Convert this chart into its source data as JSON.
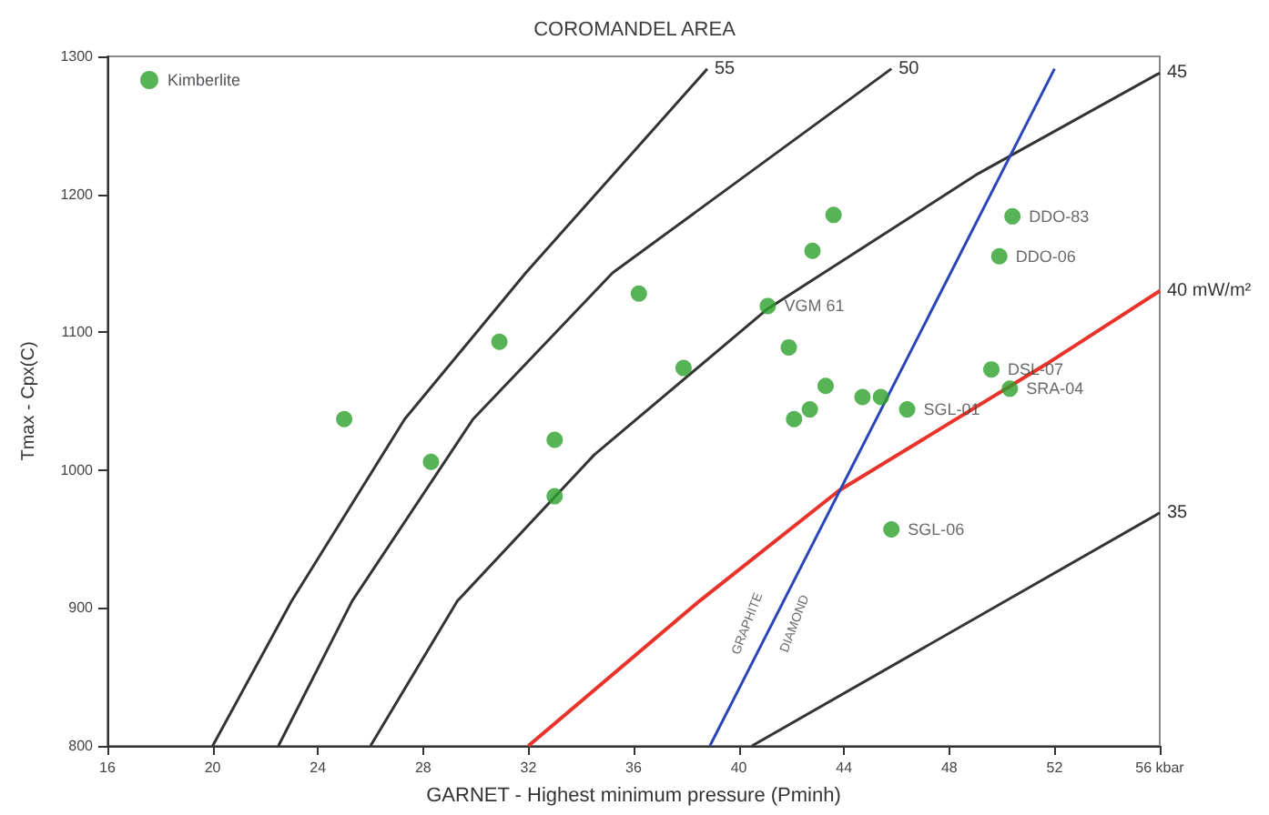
{
  "chart_data": {
    "type": "scatter",
    "title": "COROMANDEL AREA",
    "xlabel": "GARNET - Highest minimum pressure (Pminh)",
    "ylabel": "Tmax - Cpx(C)",
    "xlim": [
      16,
      56
    ],
    "xticks": [
      16,
      20,
      24,
      28,
      32,
      36,
      40,
      44,
      48,
      {
        "value": 52,
        "label": "52"
      },
      {
        "value": 56,
        "label": "56 kbar"
      }
    ],
    "ylim": [
      800,
      1300
    ],
    "yticks": [
      800,
      900,
      1000,
      1100,
      1200,
      1300
    ],
    "grid": false,
    "legend": "top left",
    "series": [
      {
        "name": "Kimberlite",
        "marker": "circle",
        "color": "#2ca02c",
        "x": [
          25.0,
          28.3,
          30.9,
          33.0,
          33.0,
          36.2,
          37.9,
          41.1,
          41.9,
          42.8,
          43.6,
          43.3,
          42.1,
          42.7,
          44.7,
          45.4,
          46.4,
          45.8,
          49.6,
          50.3,
          49.9,
          50.4
        ],
        "values": [
          1037,
          1006,
          1093,
          1022,
          981,
          1128,
          1074,
          1119,
          1089,
          1159,
          1185,
          1061,
          1037,
          1044,
          1053,
          1053,
          1044,
          957,
          1073,
          1059,
          1155,
          1184
        ]
      },
      {
        "name": "55",
        "type": "line",
        "color": "#333333",
        "x": [
          20.0,
          23.0,
          27.3,
          31.9,
          38.8
        ],
        "values": [
          800,
          905,
          1037,
          1143,
          1291
        ]
      },
      {
        "name": "50",
        "type": "line",
        "color": "#333333",
        "x": [
          22.5,
          25.3,
          29.9,
          35.2,
          45.8
        ],
        "values": [
          800,
          905,
          1037,
          1143,
          1291
        ]
      },
      {
        "name": "45",
        "type": "line",
        "color": "#333333",
        "x": [
          26.0,
          29.3,
          34.5,
          41.1,
          49.1,
          56.0
        ],
        "values": [
          800,
          905,
          1011,
          1117,
          1215,
          1288
        ]
      },
      {
        "name": "35",
        "type": "line",
        "color": "#333333",
        "x": [
          40.5,
          56.0
        ],
        "values": [
          800,
          969
        ]
      },
      {
        "name": "40 mW/m²",
        "type": "line",
        "color": "#e8322a",
        "x": [
          32.0,
          38.5,
          43.8,
          51.7,
          56.0
        ],
        "values": [
          800,
          905,
          985,
          1077,
          1130
        ]
      },
      {
        "type": "line",
        "color": "#2a45b8",
        "x": [
          38.9,
          52.0
        ],
        "values": [
          800,
          1291
        ]
      }
    ],
    "annotations": [
      {
        "text": "VGM 61",
        "x": 41.1,
        "y": 1119
      },
      {
        "text": "DDO-83",
        "x": 50.4,
        "y": 1184
      },
      {
        "text": "DDO-06",
        "x": 49.9,
        "y": 1155
      },
      {
        "text": "DSL-07",
        "x": 49.6,
        "y": 1073
      },
      {
        "text": "SGL-01",
        "x": 46.4,
        "y": 1044
      },
      {
        "text": "SRA-04",
        "x": 50.3,
        "y": 1059
      },
      {
        "text": "SGL-06",
        "x": 45.8,
        "y": 957
      },
      "GRAPHITE",
      "DIAMOND"
    ]
  }
}
